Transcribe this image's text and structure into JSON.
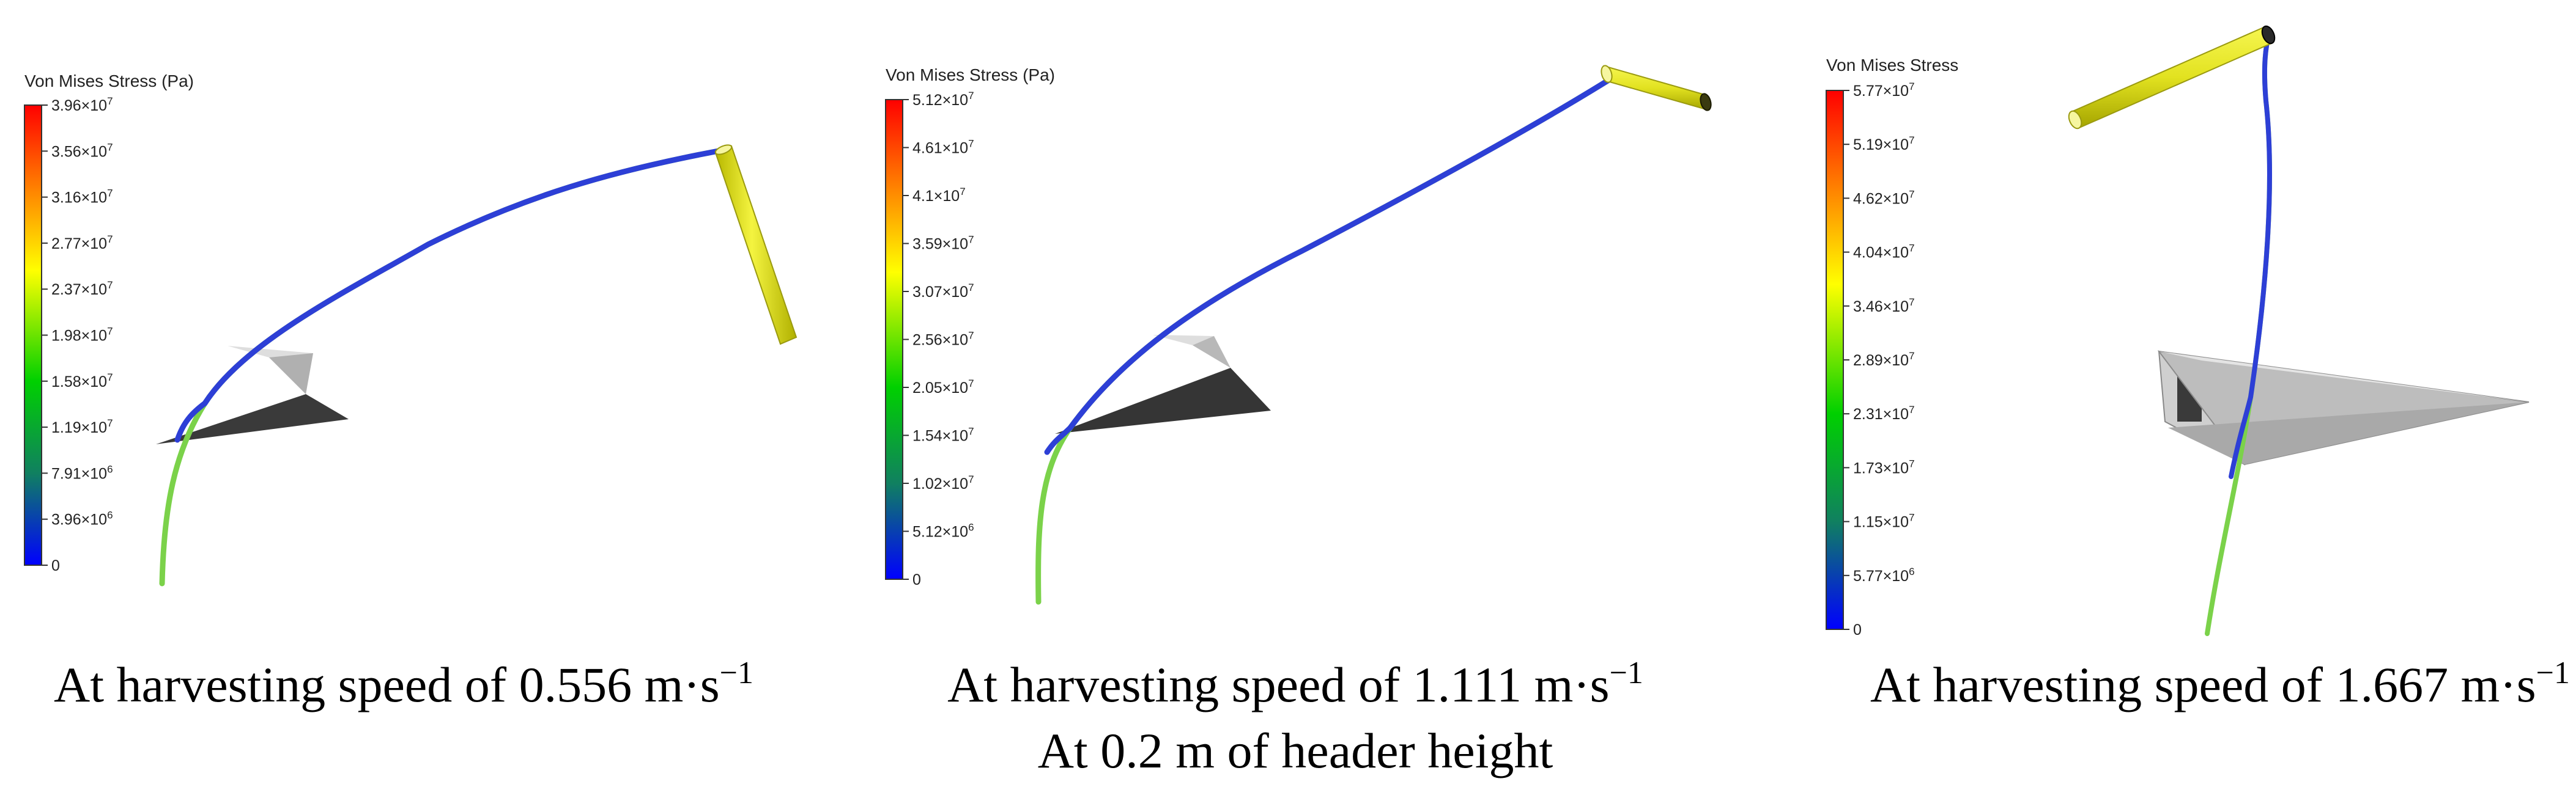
{
  "panels": [
    {
      "legend": {
        "title": "Von Mises Stress (Pa)",
        "ticks": [
          {
            "m": "3.96",
            "e": "7"
          },
          {
            "m": "3.56",
            "e": "7"
          },
          {
            "m": "3.16",
            "e": "7"
          },
          {
            "m": "2.77",
            "e": "7"
          },
          {
            "m": "2.37",
            "e": "7"
          },
          {
            "m": "1.98",
            "e": "7"
          },
          {
            "m": "1.58",
            "e": "7"
          },
          {
            "m": "1.19",
            "e": "7"
          },
          {
            "m": "7.91",
            "e": "6"
          },
          {
            "m": "3.96",
            "e": "6"
          },
          {
            "m": "0",
            "e": ""
          }
        ]
      },
      "caption": {
        "text": "At harvesting speed of 0.556 m·s",
        "sup": "−1"
      }
    },
    {
      "legend": {
        "title": "Von Mises Stress (Pa)",
        "ticks": [
          {
            "m": "5.12",
            "e": "7"
          },
          {
            "m": "4.61",
            "e": "7"
          },
          {
            "m": "4.1",
            "e": "7"
          },
          {
            "m": "3.59",
            "e": "7"
          },
          {
            "m": "3.07",
            "e": "7"
          },
          {
            "m": "2.56",
            "e": "7"
          },
          {
            "m": "2.05",
            "e": "7"
          },
          {
            "m": "1.54",
            "e": "7"
          },
          {
            "m": "1.02",
            "e": "7"
          },
          {
            "m": "5.12",
            "e": "6"
          },
          {
            "m": "0",
            "e": ""
          }
        ]
      },
      "caption": {
        "text": "At harvesting speed of 1.111 m·s",
        "sup": "−1"
      },
      "subcaption": "At 0.2 m of header height"
    },
    {
      "legend": {
        "title": "Von Mises Stress",
        "ticks": [
          {
            "m": "5.77",
            "e": "7"
          },
          {
            "m": "5.19",
            "e": "7"
          },
          {
            "m": "4.62",
            "e": "7"
          },
          {
            "m": "4.04",
            "e": "7"
          },
          {
            "m": "3.46",
            "e": "7"
          },
          {
            "m": "2.89",
            "e": "7"
          },
          {
            "m": "2.31",
            "e": "7"
          },
          {
            "m": "1.73",
            "e": "7"
          },
          {
            "m": "1.15",
            "e": "7"
          },
          {
            "m": "5.77",
            "e": "6"
          },
          {
            "m": "0",
            "e": ""
          }
        ]
      },
      "caption": {
        "text": "At harvesting speed of 1.667 m·s",
        "sup": "−1"
      }
    }
  ],
  "colors": {
    "stalk_top": "#2d3fd6",
    "stalk_bottom": "#7bd24a",
    "reel_fill": "#e6e62a",
    "reel_edge": "#9a9a10",
    "blade_dark": "#333333",
    "blade_light": "#d8d8d8"
  }
}
